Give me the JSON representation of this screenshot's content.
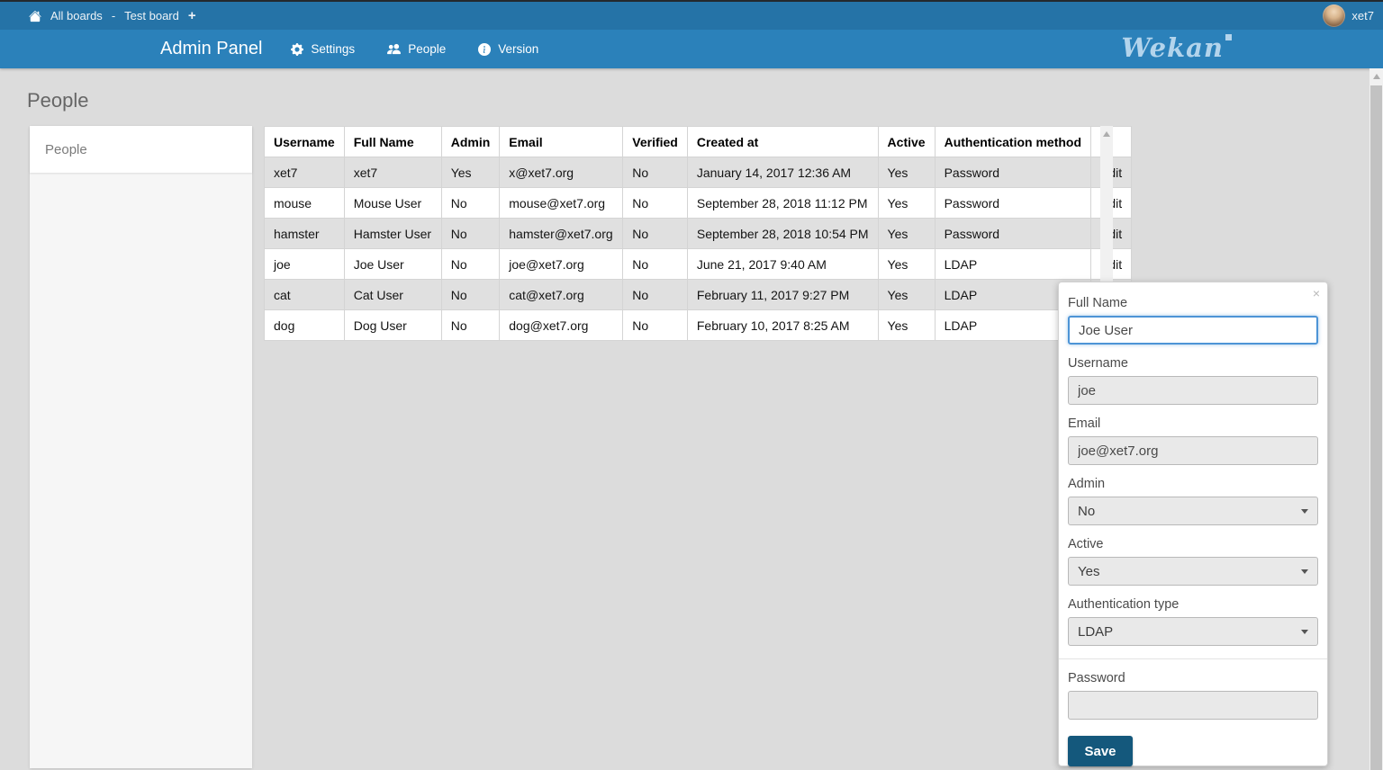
{
  "topbar": {
    "breadcrumb": {
      "all_boards": "All boards",
      "separator": "-",
      "board": "Test board",
      "add": "+"
    },
    "user": {
      "name": "xet7"
    }
  },
  "header": {
    "title": "Admin Panel",
    "menu": [
      {
        "label": "Settings",
        "icon": "gear-icon"
      },
      {
        "label": "People",
        "icon": "people-icon"
      },
      {
        "label": "Version",
        "icon": "info-icon"
      }
    ],
    "logo": "Wekan"
  },
  "page": {
    "title": "People"
  },
  "sidebar": {
    "items": [
      {
        "label": "People"
      }
    ]
  },
  "table": {
    "headers": [
      "Username",
      "Full Name",
      "Admin",
      "Email",
      "Verified",
      "Created at",
      "Active",
      "Authentication method",
      ""
    ],
    "columns": [
      "username",
      "full_name",
      "admin",
      "email",
      "verified",
      "created_at",
      "active",
      "auth_method"
    ],
    "edit_label": "Edit",
    "rows": [
      {
        "username": "xet7",
        "full_name": "xet7",
        "admin": "Yes",
        "email": "x@xet7.org",
        "verified": "No",
        "created_at": "January 14, 2017 12:36 AM",
        "active": "Yes",
        "auth_method": "Password"
      },
      {
        "username": "mouse",
        "full_name": "Mouse User",
        "admin": "No",
        "email": "mouse@xet7.org",
        "verified": "No",
        "created_at": "September 28, 2018 11:12 PM",
        "active": "Yes",
        "auth_method": "Password"
      },
      {
        "username": "hamster",
        "full_name": "Hamster User",
        "admin": "No",
        "email": "hamster@xet7.org",
        "verified": "No",
        "created_at": "September 28, 2018 10:54 PM",
        "active": "Yes",
        "auth_method": "Password"
      },
      {
        "username": "joe",
        "full_name": "Joe User",
        "admin": "No",
        "email": "joe@xet7.org",
        "verified": "No",
        "created_at": "June 21, 2017 9:40 AM",
        "active": "Yes",
        "auth_method": "LDAP"
      },
      {
        "username": "cat",
        "full_name": "Cat User",
        "admin": "No",
        "email": "cat@xet7.org",
        "verified": "No",
        "created_at": "February 11, 2017 9:27 PM",
        "active": "Yes",
        "auth_method": "LDAP"
      },
      {
        "username": "dog",
        "full_name": "Dog User",
        "admin": "No",
        "email": "dog@xet7.org",
        "verified": "No",
        "created_at": "February 10, 2017 8:25 AM",
        "active": "Yes",
        "auth_method": "LDAP"
      }
    ]
  },
  "edit_panel": {
    "close": "×",
    "fields": {
      "full_name": {
        "label": "Full Name",
        "value": "Joe User"
      },
      "username": {
        "label": "Username",
        "value": "joe"
      },
      "email": {
        "label": "Email",
        "value": "joe@xet7.org"
      },
      "admin": {
        "label": "Admin",
        "value": "No"
      },
      "active": {
        "label": "Active",
        "value": "Yes"
      },
      "auth_type": {
        "label": "Authentication type",
        "value": "LDAP"
      },
      "password": {
        "label": "Password",
        "value": ""
      }
    },
    "save_label": "Save"
  },
  "colors": {
    "topbar": "#2573a7",
    "header": "#2b81ba",
    "focus_border": "#4d94d6",
    "save_button": "#14587c",
    "row_alt": "#e0e0e0",
    "logo": "#b3d4ec"
  }
}
